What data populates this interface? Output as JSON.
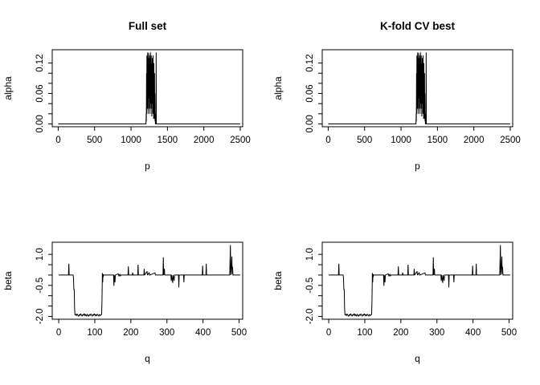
{
  "page": {
    "background": "#ffffff",
    "foreground": "#000000"
  },
  "chart_data": {
    "type": "line",
    "layout": {
      "rows": 2,
      "cols": 2,
      "grid": false,
      "legend": "none"
    },
    "line_color": "#000000",
    "panels": [
      {
        "id": "full-set-alpha",
        "title": "Full set",
        "xlabel": "p",
        "ylabel": "alpha",
        "series": "alpha",
        "xlim": [
          -82,
          2533
        ],
        "ylim": [
          -0.0056,
          0.1463
        ],
        "xticks": [
          {
            "v": 0,
            "label": "0"
          },
          {
            "v": 500,
            "label": "500"
          },
          {
            "v": 1000,
            "label": "1000"
          },
          {
            "v": 1500,
            "label": "1500"
          },
          {
            "v": 2000,
            "label": "2000"
          },
          {
            "v": 2500,
            "label": "2500"
          }
        ],
        "yticks": [
          {
            "v": 0,
            "label": "0.00"
          },
          {
            "v": 0.02,
            "label": ""
          },
          {
            "v": 0.04,
            "label": ""
          },
          {
            "v": 0.06,
            "label": "0.06"
          },
          {
            "v": 0.08,
            "label": ""
          },
          {
            "v": 0.1,
            "label": ""
          },
          {
            "v": 0.12,
            "label": "0.12"
          }
        ]
      },
      {
        "id": "kfold-cv-alpha",
        "title": "K-fold CV best",
        "xlabel": "p",
        "ylabel": "alpha",
        "series": "alpha",
        "xlim": [
          -82,
          2533
        ],
        "ylim": [
          -0.0056,
          0.1463
        ],
        "xticks": [
          {
            "v": 0,
            "label": "0"
          },
          {
            "v": 500,
            "label": "500"
          },
          {
            "v": 1000,
            "label": "1000"
          },
          {
            "v": 1500,
            "label": "1500"
          },
          {
            "v": 2000,
            "label": "2000"
          },
          {
            "v": 2500,
            "label": "2500"
          }
        ],
        "yticks": [
          {
            "v": 0,
            "label": "0.00"
          },
          {
            "v": 0.02,
            "label": ""
          },
          {
            "v": 0.04,
            "label": ""
          },
          {
            "v": 0.06,
            "label": "0.06"
          },
          {
            "v": 0.08,
            "label": ""
          },
          {
            "v": 0.1,
            "label": ""
          },
          {
            "v": 0.12,
            "label": "0.12"
          }
        ]
      },
      {
        "id": "full-set-beta",
        "title": "",
        "xlabel": "q",
        "ylabel": "beta",
        "series": "beta",
        "xlim": [
          -18,
          510
        ],
        "ylim": [
          -2.138,
          1.588
        ],
        "xticks": [
          {
            "v": 0,
            "label": "0"
          },
          {
            "v": 100,
            "label": "100"
          },
          {
            "v": 200,
            "label": "200"
          },
          {
            "v": 300,
            "label": "300"
          },
          {
            "v": 400,
            "label": "400"
          },
          {
            "v": 500,
            "label": "500"
          }
        ],
        "yticks": [
          {
            "v": -2,
            "label": "-2.0"
          },
          {
            "v": -1.5,
            "label": ""
          },
          {
            "v": -1,
            "label": ""
          },
          {
            "v": -0.5,
            "label": "-0.5"
          },
          {
            "v": 0,
            "label": ""
          },
          {
            "v": 0.5,
            "label": ""
          },
          {
            "v": 1,
            "label": "1.0"
          }
        ]
      },
      {
        "id": "kfold-cv-beta",
        "title": "",
        "xlabel": "q",
        "ylabel": "beta",
        "series": "beta",
        "xlim": [
          -18,
          510
        ],
        "ylim": [
          -2.138,
          1.588
        ],
        "xticks": [
          {
            "v": 0,
            "label": "0"
          },
          {
            "v": 100,
            "label": "100"
          },
          {
            "v": 200,
            "label": "200"
          },
          {
            "v": 300,
            "label": "300"
          },
          {
            "v": 400,
            "label": "400"
          },
          {
            "v": 500,
            "label": "500"
          }
        ],
        "yticks": [
          {
            "v": -2,
            "label": "-2.0"
          },
          {
            "v": -1.5,
            "label": ""
          },
          {
            "v": -1,
            "label": ""
          },
          {
            "v": -0.5,
            "label": "-0.5"
          },
          {
            "v": 0,
            "label": ""
          },
          {
            "v": 0.5,
            "label": ""
          },
          {
            "v": 1,
            "label": "1.0"
          }
        ]
      }
    ],
    "series": {
      "alpha": {
        "points": [
          [
            1,
            0
          ],
          [
            1205,
            0
          ],
          [
            1208,
            0.02
          ],
          [
            1210,
            0.005
          ],
          [
            1213,
            0.1
          ],
          [
            1215,
            0.02
          ],
          [
            1218,
            0.135
          ],
          [
            1220,
            0.04
          ],
          [
            1223,
            0.12
          ],
          [
            1225,
            0.03
          ],
          [
            1228,
            0.141
          ],
          [
            1230,
            0.06
          ],
          [
            1233,
            0.11
          ],
          [
            1235,
            0.02
          ],
          [
            1238,
            0.13
          ],
          [
            1240,
            0.05
          ],
          [
            1243,
            0.14
          ],
          [
            1245,
            0.07
          ],
          [
            1248,
            0.12
          ],
          [
            1250,
            0.03
          ],
          [
            1253,
            0.135
          ],
          [
            1255,
            0.05
          ],
          [
            1258,
            0.1
          ],
          [
            1260,
            0.02
          ],
          [
            1263,
            0.13
          ],
          [
            1265,
            0.04
          ],
          [
            1268,
            0.141
          ],
          [
            1270,
            0.06
          ],
          [
            1273,
            0.12
          ],
          [
            1275,
            0.03
          ],
          [
            1278,
            0.135
          ],
          [
            1280,
            0.05
          ],
          [
            1283,
            0.1
          ],
          [
            1285,
            0.015
          ],
          [
            1288,
            0.12
          ],
          [
            1290,
            0.04
          ],
          [
            1293,
            0.13
          ],
          [
            1295,
            0.06
          ],
          [
            1298,
            0.11
          ],
          [
            1300,
            0.02
          ],
          [
            1303,
            0.135
          ],
          [
            1305,
            0.04
          ],
          [
            1308,
            0.09
          ],
          [
            1310,
            0.01
          ],
          [
            1313,
            0.12
          ],
          [
            1315,
            0.03
          ],
          [
            1318,
            0.08
          ],
          [
            1320,
            0.01
          ],
          [
            1323,
            0.1
          ],
          [
            1325,
            0.02
          ],
          [
            1328,
            0.06
          ],
          [
            1330,
            0.005
          ],
          [
            1333,
            0.02
          ],
          [
            1335,
            0
          ],
          [
            1343,
            0
          ],
          [
            1345,
            0.141
          ],
          [
            1347,
            0
          ],
          [
            2499,
            0
          ]
        ]
      },
      "beta": {
        "points": [
          [
            0,
            0
          ],
          [
            27,
            0
          ],
          [
            28,
            0.55
          ],
          [
            29,
            0
          ],
          [
            40,
            0
          ],
          [
            41,
            -0.15
          ],
          [
            42,
            -0.72
          ],
          [
            43,
            -0.68
          ],
          [
            44,
            -1.6
          ],
          [
            45,
            -1.93
          ],
          [
            47,
            -1.9
          ],
          [
            49,
            -1.97
          ],
          [
            51,
            -1.88
          ],
          [
            53,
            -1.95
          ],
          [
            55,
            -2
          ],
          [
            57,
            -1.9
          ],
          [
            59,
            -1.96
          ],
          [
            61,
            -1.87
          ],
          [
            63,
            -1.94
          ],
          [
            65,
            -1.99
          ],
          [
            67,
            -1.9
          ],
          [
            69,
            -1.95
          ],
          [
            71,
            -1.86
          ],
          [
            73,
            -1.97
          ],
          [
            75,
            -1.92
          ],
          [
            77,
            -1.99
          ],
          [
            79,
            -1.89
          ],
          [
            81,
            -1.95
          ],
          [
            83,
            -2
          ],
          [
            85,
            -1.9
          ],
          [
            87,
            -1.96
          ],
          [
            89,
            -1.88
          ],
          [
            91,
            -1.94
          ],
          [
            93,
            -1.99
          ],
          [
            95,
            -1.9
          ],
          [
            97,
            -1.95
          ],
          [
            99,
            -1.87
          ],
          [
            101,
            -1.96
          ],
          [
            103,
            -1.92
          ],
          [
            105,
            -1.98
          ],
          [
            107,
            -1.89
          ],
          [
            109,
            -1.94
          ],
          [
            111,
            -1.99
          ],
          [
            113,
            -1.9
          ],
          [
            115,
            -1.96
          ],
          [
            117,
            -1.93
          ],
          [
            119,
            -1.9
          ],
          [
            120,
            -1.2
          ],
          [
            121,
            0.1
          ],
          [
            122,
            -0.35
          ],
          [
            122.5,
            0.05
          ],
          [
            123,
            -0.1
          ],
          [
            124,
            0
          ],
          [
            152,
            0
          ],
          [
            153,
            -0.52
          ],
          [
            154,
            0
          ],
          [
            156,
            -0.35
          ],
          [
            157,
            0
          ],
          [
            165,
            0.06
          ],
          [
            167,
            -0.06
          ],
          [
            169,
            0.05
          ],
          [
            171,
            -0.04
          ],
          [
            173,
            0
          ],
          [
            192,
            0
          ],
          [
            193,
            0.42
          ],
          [
            194,
            0
          ],
          [
            204,
            0
          ],
          [
            205,
            0.12
          ],
          [
            206,
            0
          ],
          [
            219,
            0
          ],
          [
            220,
            0.5
          ],
          [
            221,
            0
          ],
          [
            236,
            0
          ],
          [
            237,
            0.3
          ],
          [
            238,
            0
          ],
          [
            245,
            0.18
          ],
          [
            246,
            0
          ],
          [
            251,
            0.12
          ],
          [
            252,
            0
          ],
          [
            267,
            0.1
          ],
          [
            268,
            0
          ],
          [
            289,
            0
          ],
          [
            290,
            0.86
          ],
          [
            291,
            0
          ],
          [
            293,
            0.3
          ],
          [
            294,
            0
          ],
          [
            311,
            0
          ],
          [
            312,
            -0.28
          ],
          [
            313,
            0
          ],
          [
            316,
            -0.38
          ],
          [
            317,
            0
          ],
          [
            320,
            -0.28
          ],
          [
            321,
            0
          ],
          [
            332,
            0
          ],
          [
            333,
            -0.6
          ],
          [
            334,
            0
          ],
          [
            346,
            0
          ],
          [
            347,
            -0.35
          ],
          [
            348,
            0
          ],
          [
            398,
            0
          ],
          [
            399,
            0.45
          ],
          [
            400,
            0
          ],
          [
            408,
            0
          ],
          [
            409,
            0.55
          ],
          [
            410,
            0
          ],
          [
            474,
            0
          ],
          [
            476,
            1.45
          ],
          [
            477,
            0
          ],
          [
            479,
            0.5
          ],
          [
            480,
            0.9
          ],
          [
            481,
            0.05
          ],
          [
            482,
            0.4
          ],
          [
            483,
            0
          ],
          [
            503,
            0
          ]
        ]
      }
    }
  }
}
